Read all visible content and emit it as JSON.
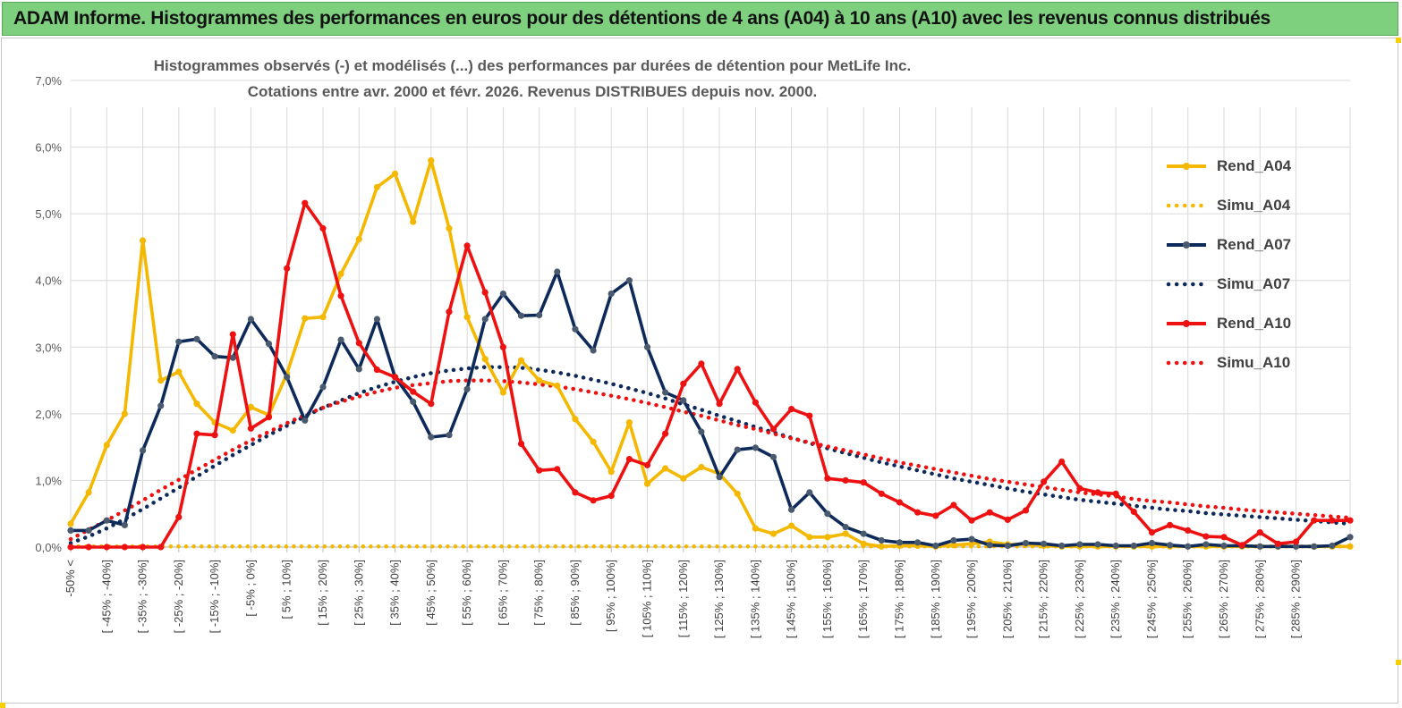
{
  "banner": {
    "text": "ADAM Informe. Histogrammes des performances en euros pour des détentions de 4 ans (A04) à 10 ans (A10) avec les revenus connus distribués"
  },
  "chart_title": {
    "line1": "Histogrammes observés (-)  et modélisés (...) des performances  par durées de détention pour MetLife Inc.",
    "line2": "Cotations entre avr. 2000 et févr. 2026. Revenus DISTRIBUES depuis nov. 2000."
  },
  "colors": {
    "A04": "#f5b800",
    "A07": "#0e2a5a",
    "A10": "#ee1111",
    "grid": "#d9d9d9",
    "banner": "#7ed07f"
  },
  "chart_data": {
    "type": "line",
    "title": "Histogrammes observés (-)  et modélisés (...) des performances  par durées de détention pour MetLife Inc. Cotations entre avr. 2000 et févr. 2026. Revenus DISTRIBUES depuis nov. 2000.",
    "xlabel": "",
    "ylabel": "",
    "ylim": [
      0,
      7
    ],
    "yticks": [
      "0,0%",
      "1,0%",
      "2,0%",
      "3,0%",
      "4,0%",
      "5,0%",
      "6,0%",
      "7,0%"
    ],
    "grid": true,
    "legend_position": "right",
    "category_labels": [
      "-50% <",
      "[ -45% ; -40%]",
      "[ -35% ; -30%]",
      "[ -25% ; -20%]",
      "[ -15% ; -10%]",
      "[ -5% ; 0%]",
      "[ 5% ; 10%]",
      "[ 15% ; 20%]",
      "[ 25% ; 30%]",
      "[ 35% ; 40%]",
      "[ 45% ; 50%]",
      "[ 55% ; 60%]",
      "[ 65% ; 70%]",
      "[ 75% ; 80%]",
      "[ 85% ; 90%]",
      "[ 95% ; 100%]",
      "[ 105% ; 110%]",
      "[ 115% ; 120%]",
      "[ 125% ; 130%]",
      "[ 135% ; 140%]",
      "[ 145% ; 150%]",
      "[ 155% ; 160%]",
      "[ 165% ; 170%]",
      "[ 175% ; 180%]",
      "[ 185% ; 190%]",
      "[ 195% ; 200%]",
      "[ 205% ; 210%]",
      "[ 215% ; 220%]",
      "[ 225% ; 230%]",
      "[ 235% ; 240%]",
      "[ 245% ; 250%]",
      "[ 255% ; 260%]",
      "[ 265% ; 270%]",
      "[ 275% ; 280%]",
      "[ 285% ; 290%]"
    ],
    "series": [
      {
        "name": "Rend_A04",
        "style": "solid-markers",
        "color_key": "A04",
        "values": [
          0.35,
          0.82,
          1.53,
          2.0,
          4.6,
          2.5,
          2.63,
          2.15,
          1.87,
          1.75,
          2.1,
          1.98,
          2.6,
          3.43,
          3.45,
          4.1,
          4.62,
          5.4,
          5.6,
          4.88,
          5.8,
          4.78,
          3.45,
          2.82,
          2.32,
          2.8,
          2.5,
          2.42,
          1.92,
          1.58,
          1.13,
          1.87,
          0.95,
          1.18,
          1.03,
          1.2,
          1.1,
          0.8,
          0.28,
          0.2,
          0.32,
          0.15,
          0.15,
          0.2,
          0.05,
          0.01,
          0.02,
          0.02,
          0.01,
          0.03,
          0.05,
          0.08,
          0.04,
          0.04,
          0.02,
          0.01,
          0.01,
          0.01,
          0.01,
          0.01,
          0.01,
          0.01,
          0.01,
          0.01,
          0.01,
          0.01,
          0.01,
          0.01,
          0.01,
          0.01,
          0.01,
          0.01
        ]
      },
      {
        "name": "Simu_A04",
        "style": "dotted",
        "color_key": "A04",
        "values": [
          0.01,
          0.01,
          0.01,
          0.01,
          0.01,
          0.01,
          0.01,
          0.01,
          0.01,
          0.01,
          0.01,
          0.01,
          0.01,
          0.01,
          0.01,
          0.01,
          0.01,
          0.01,
          0.01,
          0.01,
          0.01,
          0.01,
          0.01,
          0.01,
          0.01,
          0.01,
          0.01,
          0.01,
          0.01,
          0.01,
          0.01,
          0.01,
          0.01,
          0.01,
          0.01,
          0.01,
          0.01,
          0.01,
          0.01,
          0.01,
          0.01,
          0.01,
          0.01,
          0.01,
          0.01,
          0.01,
          0.01,
          0.01,
          0.01,
          0.01,
          0.01,
          0.01,
          0.01,
          0.01,
          0.01,
          0.01,
          0.01,
          0.01,
          0.01,
          0.01,
          0.01,
          0.01,
          0.01,
          0.01,
          0.01,
          0.01,
          0.01,
          0.01,
          0.01,
          0.01,
          0.01,
          0.01
        ]
      },
      {
        "name": "Rend_A07",
        "style": "solid-markers",
        "color_key": "A07",
        "values": [
          0.25,
          0.25,
          0.4,
          0.33,
          1.45,
          2.12,
          3.08,
          3.12,
          2.86,
          2.84,
          3.42,
          3.05,
          2.55,
          1.9,
          2.4,
          3.11,
          2.67,
          3.42,
          2.55,
          2.18,
          1.65,
          1.68,
          2.37,
          3.42,
          3.8,
          3.47,
          3.48,
          4.13,
          3.27,
          2.95,
          3.8,
          4.0,
          3.0,
          2.32,
          2.2,
          1.73,
          1.05,
          1.46,
          1.49,
          1.35,
          0.56,
          0.82,
          0.5,
          0.3,
          0.2,
          0.1,
          0.07,
          0.07,
          0.02,
          0.1,
          0.12,
          0.03,
          0.02,
          0.06,
          0.05,
          0.02,
          0.04,
          0.04,
          0.02,
          0.02,
          0.06,
          0.03,
          0.01,
          0.04,
          0.02,
          0.02,
          0.01,
          0.01,
          0.01,
          0.01,
          0.02,
          0.15
        ]
      },
      {
        "name": "Simu_A07",
        "style": "dotted",
        "color_key": "A07",
        "values": [
          0.06,
          0.16,
          0.28,
          0.42,
          0.57,
          0.73,
          0.89,
          1.06,
          1.22,
          1.38,
          1.53,
          1.68,
          1.82,
          1.96,
          2.09,
          2.2,
          2.31,
          2.4,
          2.48,
          2.55,
          2.61,
          2.65,
          2.68,
          2.7,
          2.7,
          2.69,
          2.66,
          2.62,
          2.57,
          2.51,
          2.45,
          2.38,
          2.31,
          2.23,
          2.14,
          2.06,
          1.97,
          1.89,
          1.8,
          1.72,
          1.64,
          1.56,
          1.48,
          1.41,
          1.34,
          1.27,
          1.21,
          1.15,
          1.09,
          1.03,
          0.98,
          0.93,
          0.88,
          0.83,
          0.79,
          0.75,
          0.71,
          0.68,
          0.65,
          0.62,
          0.59,
          0.56,
          0.54,
          0.51,
          0.49,
          0.47,
          0.45,
          0.43,
          0.41,
          0.39,
          0.37,
          0.35
        ]
      },
      {
        "name": "Rend_A10",
        "style": "solid-markers",
        "color_key": "A10",
        "values": [
          0.0,
          0.0,
          0.0,
          0.0,
          0.0,
          0.0,
          0.45,
          1.7,
          1.68,
          3.19,
          1.78,
          1.95,
          4.18,
          5.16,
          4.78,
          3.77,
          3.06,
          2.66,
          2.55,
          2.33,
          2.15,
          3.53,
          4.52,
          3.82,
          3.0,
          1.55,
          1.15,
          1.17,
          0.82,
          0.7,
          0.77,
          1.32,
          1.23,
          1.7,
          2.45,
          2.75,
          2.15,
          2.67,
          2.17,
          1.77,
          2.07,
          1.97,
          1.03,
          1.0,
          0.97,
          0.8,
          0.67,
          0.52,
          0.47,
          0.63,
          0.4,
          0.52,
          0.41,
          0.55,
          0.98,
          1.28,
          0.88,
          0.82,
          0.8,
          0.53,
          0.22,
          0.33,
          0.25,
          0.16,
          0.15,
          0.03,
          0.22,
          0.05,
          0.08,
          0.4,
          0.4,
          0.4
        ]
      },
      {
        "name": "Simu_A10",
        "style": "dotted",
        "color_key": "A10",
        "values": [
          0.12,
          0.26,
          0.4,
          0.55,
          0.7,
          0.86,
          1.01,
          1.16,
          1.31,
          1.46,
          1.6,
          1.73,
          1.86,
          1.98,
          2.09,
          2.18,
          2.26,
          2.33,
          2.39,
          2.43,
          2.46,
          2.49,
          2.5,
          2.5,
          2.49,
          2.47,
          2.44,
          2.41,
          2.37,
          2.32,
          2.27,
          2.22,
          2.16,
          2.1,
          2.03,
          1.97,
          1.9,
          1.83,
          1.77,
          1.7,
          1.63,
          1.57,
          1.51,
          1.45,
          1.39,
          1.33,
          1.27,
          1.22,
          1.17,
          1.12,
          1.07,
          1.02,
          0.98,
          0.94,
          0.9,
          0.86,
          0.82,
          0.79,
          0.76,
          0.72,
          0.69,
          0.67,
          0.64,
          0.61,
          0.59,
          0.56,
          0.54,
          0.52,
          0.5,
          0.48,
          0.46,
          0.44
        ]
      }
    ]
  },
  "legend": {
    "items": [
      "Rend_A04",
      "Simu_A04",
      "Rend_A07",
      "Simu_A07",
      "Rend_A10",
      "Simu_A10"
    ]
  }
}
